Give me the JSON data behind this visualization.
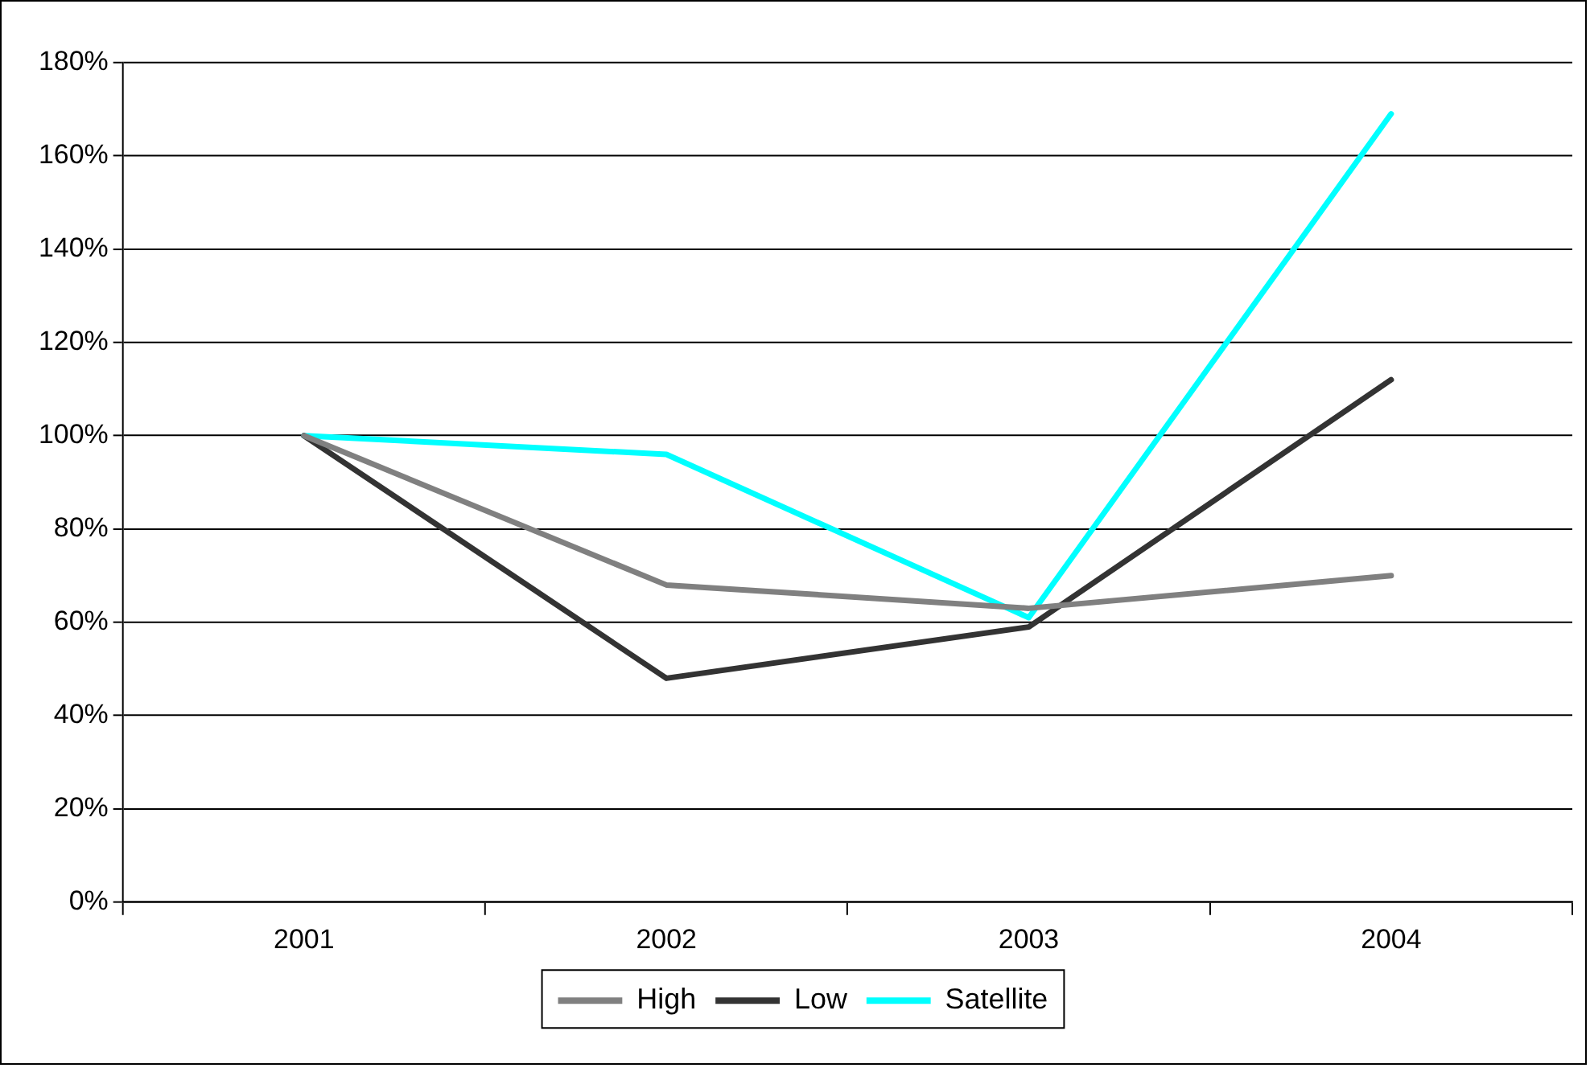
{
  "chart_data": {
    "type": "line",
    "categories": [
      "2001",
      "2002",
      "2003",
      "2004"
    ],
    "series": [
      {
        "name": "High",
        "color": "#808080",
        "values": [
          100,
          68,
          63,
          70
        ]
      },
      {
        "name": "Low",
        "color": "#333333",
        "values": [
          100,
          48,
          59,
          112
        ]
      },
      {
        "name": "Satellite",
        "color": "#00ffff",
        "values": [
          100,
          96,
          61,
          169
        ]
      }
    ],
    "ylim": [
      0,
      180
    ],
    "yticks": [
      {
        "value": 0,
        "label": "0%"
      },
      {
        "value": 20,
        "label": "20%"
      },
      {
        "value": 40,
        "label": "40%"
      },
      {
        "value": 60,
        "label": "60%"
      },
      {
        "value": 80,
        "label": "80%"
      },
      {
        "value": 100,
        "label": "100%"
      },
      {
        "value": 120,
        "label": "120%"
      },
      {
        "value": 140,
        "label": "140%"
      },
      {
        "value": 160,
        "label": "160%"
      },
      {
        "value": 180,
        "label": "180%"
      }
    ],
    "grid": "y",
    "legend": "bottom",
    "marker": "none",
    "line_style": "solid"
  }
}
